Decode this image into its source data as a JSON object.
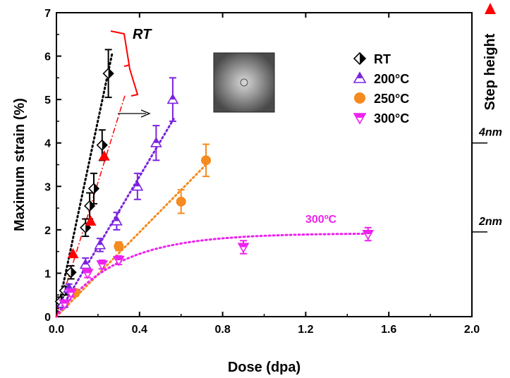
{
  "chart_data": {
    "type": "scatter",
    "xlabel": "Dose (dpa)",
    "ylabel": "Maximum strain (%)",
    "xlim": [
      0,
      2.0
    ],
    "ylim": [
      0,
      7
    ],
    "x_ticks": [
      "0.0",
      "0.4",
      "0.8",
      "1.2",
      "1.6",
      "2.0"
    ],
    "y_ticks": [
      "0",
      "1",
      "2",
      "3",
      "4",
      "5",
      "6",
      "7"
    ],
    "grid": false,
    "legend_position": "top-right",
    "right_axis": {
      "label": "Step height",
      "ticks": [
        {
          "label": "4nm",
          "strain": 4.0
        },
        {
          "label": "2nm",
          "strain": 1.95
        }
      ],
      "color": "#ff0000"
    },
    "series": [
      {
        "name": "RT",
        "marker": "half-diamond",
        "color": "#000000",
        "points": [
          {
            "x": 0.02,
            "y": 0.35,
            "err": 0.1
          },
          {
            "x": 0.04,
            "y": 0.6,
            "err": 0.1
          },
          {
            "x": 0.07,
            "y": 1.02,
            "err": 0.15
          },
          {
            "x": 0.14,
            "y": 2.05,
            "err": 0.2
          },
          {
            "x": 0.16,
            "y": 2.55,
            "err": 0.3
          },
          {
            "x": 0.18,
            "y": 2.95,
            "err": 0.35
          },
          {
            "x": 0.22,
            "y": 3.95,
            "err": 0.35
          },
          {
            "x": 0.25,
            "y": 5.6,
            "err": 0.55
          }
        ],
        "trend": [
          [
            0.0,
            0.0
          ],
          [
            0.27,
            6.1
          ]
        ]
      },
      {
        "name": "200°C",
        "marker": "half-triangle-up",
        "color": "#7b22e0",
        "points": [
          {
            "x": 0.03,
            "y": 0.3,
            "err": 0.08
          },
          {
            "x": 0.06,
            "y": 0.65,
            "err": 0.1
          },
          {
            "x": 0.14,
            "y": 1.2,
            "err": 0.15
          },
          {
            "x": 0.21,
            "y": 1.65,
            "err": 0.15
          },
          {
            "x": 0.29,
            "y": 2.2,
            "err": 0.2
          },
          {
            "x": 0.39,
            "y": 3.0,
            "err": 0.3
          },
          {
            "x": 0.48,
            "y": 4.0,
            "err": 0.4
          },
          {
            "x": 0.56,
            "y": 5.0,
            "err": 0.5
          }
        ],
        "trend": [
          [
            0.0,
            0.0
          ],
          [
            0.57,
            4.6
          ]
        ]
      },
      {
        "name": "250°C",
        "marker": "circle",
        "color": "#f58a1f",
        "points": [
          {
            "x": 0.09,
            "y": 0.55,
            "err": 0.08
          },
          {
            "x": 0.3,
            "y": 1.62,
            "err": 0.1
          },
          {
            "x": 0.6,
            "y": 2.65,
            "err": 0.27
          },
          {
            "x": 0.72,
            "y": 3.6,
            "err": 0.37
          }
        ],
        "trend": [
          [
            0.0,
            0.0
          ],
          [
            0.72,
            3.5
          ]
        ]
      },
      {
        "name": "300°C",
        "marker": "half-triangle-down",
        "color": "#ee22ee",
        "points": [
          {
            "x": 0.04,
            "y": 0.3,
            "err": 0.05
          },
          {
            "x": 0.07,
            "y": 0.55,
            "err": 0.08
          },
          {
            "x": 0.15,
            "y": 1.0,
            "err": 0.1
          },
          {
            "x": 0.22,
            "y": 1.2,
            "err": 0.1
          },
          {
            "x": 0.3,
            "y": 1.3,
            "err": 0.1
          },
          {
            "x": 0.9,
            "y": 1.6,
            "err": 0.15
          },
          {
            "x": 1.5,
            "y": 1.9,
            "err": 0.15
          }
        ],
        "trend_curve": {
          "a": 1.92,
          "k": 3.5
        }
      }
    ],
    "red_triangles": [
      {
        "x": 0.08,
        "y": 1.45
      },
      {
        "x": 0.165,
        "y": 2.2
      },
      {
        "x": 0.23,
        "y": 3.7
      }
    ],
    "red_trend": [
      [
        0.0,
        0.0
      ],
      [
        0.33,
        5.1
      ]
    ],
    "annotations": [
      {
        "text": "RT",
        "color": "#000000"
      },
      {
        "text": "300ºC",
        "color": "#ee22ee"
      }
    ]
  }
}
